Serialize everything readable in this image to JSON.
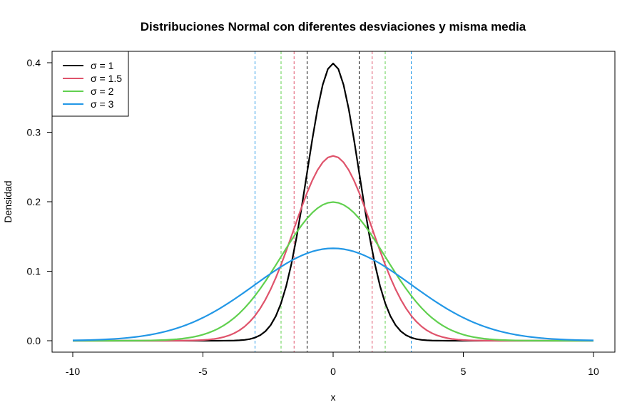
{
  "chart_data": {
    "type": "line",
    "title": "Distribuciones Normal con diferentes desviaciones y misma media",
    "xlabel": "x",
    "ylabel": "Densidad",
    "xlim": [
      -10,
      10
    ],
    "ylim": [
      0,
      0.4
    ],
    "x_ticks": [
      -10,
      -5,
      0,
      5,
      10
    ],
    "x_tick_labels": [
      "-10",
      "-5",
      "0",
      "5",
      "10"
    ],
    "y_ticks": [
      0,
      0.1,
      0.2,
      0.3,
      0.4
    ],
    "y_tick_labels": [
      "0.0",
      "0.1",
      "0.2",
      "0.3",
      "0.4"
    ],
    "mean": 0,
    "x_samples": 101,
    "grid": false,
    "legend_position": "top-left",
    "series": [
      {
        "name": "σ = 1",
        "sd": 1,
        "color": "#000000",
        "reference_lines": [
          -1,
          1
        ]
      },
      {
        "name": "σ = 1.5",
        "sd": 1.5,
        "color": "#DF536B",
        "reference_lines": [
          -1.5,
          1.5
        ]
      },
      {
        "name": "σ = 2",
        "sd": 2,
        "color": "#61D04F",
        "reference_lines": [
          -2,
          2
        ]
      },
      {
        "name": "σ = 3",
        "sd": 3,
        "color": "#2297E6",
        "reference_lines": [
          -3,
          3
        ]
      }
    ]
  }
}
